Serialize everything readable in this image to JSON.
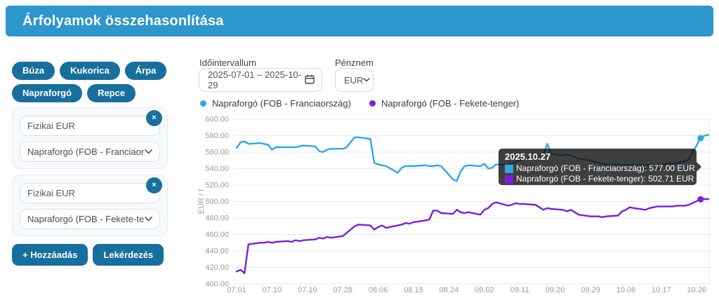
{
  "header": {
    "title": "Árfolyamok összehasonlítása"
  },
  "pills": [
    {
      "label": "Búza"
    },
    {
      "label": "Kukorica"
    },
    {
      "label": "Árpa"
    },
    {
      "label": "Napraforgó"
    },
    {
      "label": "Repce"
    }
  ],
  "filters": [
    {
      "search_value": "Fizikai EUR",
      "selected_option": "Napraforgó (FOB - Franciaország)",
      "remove_glyph": "×"
    },
    {
      "search_value": "Fizikai EUR",
      "selected_option": "Napraforgó (FOB - Fekete-tenger)",
      "remove_glyph": "×"
    }
  ],
  "actions": {
    "add_label": "+ Hozzáadás",
    "query_label": "Lekérdezés"
  },
  "controls": {
    "interval_label": "Időintervallum",
    "interval_value": "2025-07-01 – 2025-10-29",
    "currency_label": "Pénznem",
    "currency_value": "EUR"
  },
  "legend": [
    {
      "label": "Napraforgó (FOB - Franciaország)",
      "color": "#2ea7e6"
    },
    {
      "label": "Napraforgó (FOB - Fekete-tenger)",
      "color": "#7c1fe0"
    }
  ],
  "tooltip": {
    "title": "2025.10.27",
    "rows": [
      {
        "color": "#2ea7e6",
        "text": "Napraforgó (FOB - Franciaország): 577.00 EUR / t"
      },
      {
        "color": "#7c1fe0",
        "text": "Napraforgó (FOB - Fekete-tenger): 502.71 EUR / t"
      }
    ]
  },
  "chart_data": {
    "type": "line",
    "ylabel": "EUR / t",
    "ylim": [
      400,
      600
    ],
    "ytick_step": 20,
    "grid": true,
    "y_tick_labels": [
      "600.00",
      "580.00",
      "560.00",
      "540.00",
      "520.00",
      "500.00",
      "480.00",
      "460.00",
      "440.00",
      "420.00",
      "400.00"
    ],
    "x_tick_labels": [
      "07.01",
      "07.10",
      "07.19",
      "07.28",
      "08.06",
      "08.15",
      "08.24",
      "09.02",
      "09.11",
      "09.20",
      "09.29",
      "10.08",
      "10.17",
      "10.26"
    ],
    "highlight": {
      "x": "10.27",
      "date_label": "2025.10.27",
      "values": [
        577.0,
        502.71
      ]
    },
    "series": [
      {
        "name": "Napraforgó (FOB - Franciaország)",
        "color": "#2ea7e6",
        "unit": "EUR / t",
        "points": [
          [
            "07.01",
            565
          ],
          [
            "07.02",
            572
          ],
          [
            "07.03",
            573
          ],
          [
            "07.04",
            570
          ],
          [
            "07.07",
            571
          ],
          [
            "07.08",
            570
          ],
          [
            "07.09",
            569
          ],
          [
            "07.10",
            563
          ],
          [
            "07.11",
            566
          ],
          [
            "07.14",
            566
          ],
          [
            "07.15",
            566
          ],
          [
            "07.16",
            566
          ],
          [
            "07.17",
            567
          ],
          [
            "07.18",
            568
          ],
          [
            "07.21",
            567
          ],
          [
            "07.22",
            561
          ],
          [
            "07.23",
            560
          ],
          [
            "07.24",
            563
          ],
          [
            "07.25",
            564
          ],
          [
            "07.28",
            564
          ],
          [
            "07.29",
            566
          ],
          [
            "07.30",
            572
          ],
          [
            "07.31",
            578
          ],
          [
            "08.01",
            578
          ],
          [
            "08.04",
            576
          ],
          [
            "08.05",
            547
          ],
          [
            "08.06",
            545
          ],
          [
            "08.07",
            544
          ],
          [
            "08.08",
            543
          ],
          [
            "08.11",
            535
          ],
          [
            "08.12",
            541
          ],
          [
            "08.13",
            543
          ],
          [
            "08.14",
            543
          ],
          [
            "08.15",
            543
          ],
          [
            "08.18",
            544
          ],
          [
            "08.19",
            543
          ],
          [
            "08.20",
            543
          ],
          [
            "08.21",
            544
          ],
          [
            "08.22",
            543
          ],
          [
            "08.25",
            527
          ],
          [
            "08.26",
            525
          ],
          [
            "08.27",
            537
          ],
          [
            "08.28",
            543
          ],
          [
            "08.29",
            544
          ],
          [
            "09.01",
            543
          ],
          [
            "09.02",
            546
          ],
          [
            "09.03",
            540
          ],
          [
            "09.04",
            541
          ],
          [
            "09.05",
            545
          ],
          [
            "09.08",
            544
          ],
          [
            "09.09",
            546
          ],
          [
            "09.10",
            548
          ],
          [
            "09.11",
            550
          ],
          [
            "09.12",
            552
          ],
          [
            "09.15",
            554
          ],
          [
            "09.16",
            556
          ],
          [
            "09.17",
            557
          ],
          [
            "09.18",
            570
          ],
          [
            "09.19",
            558
          ],
          [
            "09.22",
            556
          ],
          [
            "09.23",
            557
          ],
          [
            "09.24",
            556
          ],
          [
            "09.25",
            554
          ],
          [
            "09.26",
            552
          ],
          [
            "09.29",
            550
          ],
          [
            "09.30",
            548
          ],
          [
            "10.01",
            547
          ],
          [
            "10.02",
            546
          ],
          [
            "10.03",
            545
          ],
          [
            "10.06",
            545
          ],
          [
            "10.07",
            544
          ],
          [
            "10.08",
            545
          ],
          [
            "10.09",
            544
          ],
          [
            "10.10",
            545
          ],
          [
            "10.13",
            544
          ],
          [
            "10.14",
            545
          ],
          [
            "10.15",
            544
          ],
          [
            "10.16",
            545
          ],
          [
            "10.17",
            545
          ],
          [
            "10.20",
            546
          ],
          [
            "10.21",
            547
          ],
          [
            "10.22",
            548
          ],
          [
            "10.23",
            549
          ],
          [
            "10.24",
            551
          ],
          [
            "10.27",
            577
          ],
          [
            "10.28",
            580
          ],
          [
            "10.29",
            581
          ]
        ]
      },
      {
        "name": "Napraforgó (FOB - Fekete-tenger)",
        "color": "#7c1fe0",
        "unit": "EUR / t",
        "points": [
          [
            "07.01",
            415
          ],
          [
            "07.02",
            417
          ],
          [
            "07.03",
            413
          ],
          [
            "07.04",
            448
          ],
          [
            "07.07",
            450
          ],
          [
            "07.08",
            450
          ],
          [
            "07.09",
            451
          ],
          [
            "07.10",
            450
          ],
          [
            "07.11",
            451
          ],
          [
            "07.14",
            452
          ],
          [
            "07.15",
            451
          ],
          [
            "07.16",
            453
          ],
          [
            "07.17",
            452
          ],
          [
            "07.18",
            453
          ],
          [
            "07.21",
            454
          ],
          [
            "07.22",
            456
          ],
          [
            "07.23",
            455
          ],
          [
            "07.24",
            457
          ],
          [
            "07.25",
            456
          ],
          [
            "07.28",
            458
          ],
          [
            "07.29",
            462
          ],
          [
            "07.30",
            466
          ],
          [
            "07.31",
            470
          ],
          [
            "08.01",
            472
          ],
          [
            "08.04",
            471
          ],
          [
            "08.05",
            466
          ],
          [
            "08.06",
            469
          ],
          [
            "08.07",
            471
          ],
          [
            "08.08",
            468
          ],
          [
            "08.11",
            471
          ],
          [
            "08.12",
            472
          ],
          [
            "08.13",
            474
          ],
          [
            "08.14",
            473
          ],
          [
            "08.15",
            475
          ],
          [
            "08.18",
            477
          ],
          [
            "08.19",
            478
          ],
          [
            "08.20",
            489
          ],
          [
            "08.21",
            489
          ],
          [
            "08.22",
            486
          ],
          [
            "08.25",
            485
          ],
          [
            "08.26",
            490
          ],
          [
            "08.27",
            487
          ],
          [
            "08.28",
            486
          ],
          [
            "08.29",
            487
          ],
          [
            "09.01",
            484
          ],
          [
            "09.02",
            490
          ],
          [
            "09.03",
            492
          ],
          [
            "09.04",
            497
          ],
          [
            "09.05",
            499
          ],
          [
            "09.08",
            495
          ],
          [
            "09.09",
            496
          ],
          [
            "09.10",
            498
          ],
          [
            "09.11",
            497
          ],
          [
            "09.12",
            497
          ],
          [
            "09.15",
            496
          ],
          [
            "09.16",
            493
          ],
          [
            "09.17",
            490
          ],
          [
            "09.18",
            492
          ],
          [
            "09.19",
            491
          ],
          [
            "09.22",
            490
          ],
          [
            "09.23",
            488
          ],
          [
            "09.24",
            490
          ],
          [
            "09.25",
            487
          ],
          [
            "09.26",
            484
          ],
          [
            "09.29",
            482
          ],
          [
            "09.30",
            482
          ],
          [
            "10.01",
            482
          ],
          [
            "10.02",
            481
          ],
          [
            "10.03",
            482
          ],
          [
            "10.06",
            483
          ],
          [
            "10.07",
            488
          ],
          [
            "10.08",
            490
          ],
          [
            "10.09",
            493
          ],
          [
            "10.10",
            492
          ],
          [
            "10.13",
            490
          ],
          [
            "10.14",
            492
          ],
          [
            "10.15",
            493
          ],
          [
            "10.16",
            494
          ],
          [
            "10.17",
            494
          ],
          [
            "10.20",
            494
          ],
          [
            "10.21",
            495
          ],
          [
            "10.22",
            495
          ],
          [
            "10.23",
            495
          ],
          [
            "10.24",
            496
          ],
          [
            "10.27",
            502.71
          ],
          [
            "10.28",
            503
          ],
          [
            "10.29",
            503
          ]
        ]
      }
    ]
  }
}
